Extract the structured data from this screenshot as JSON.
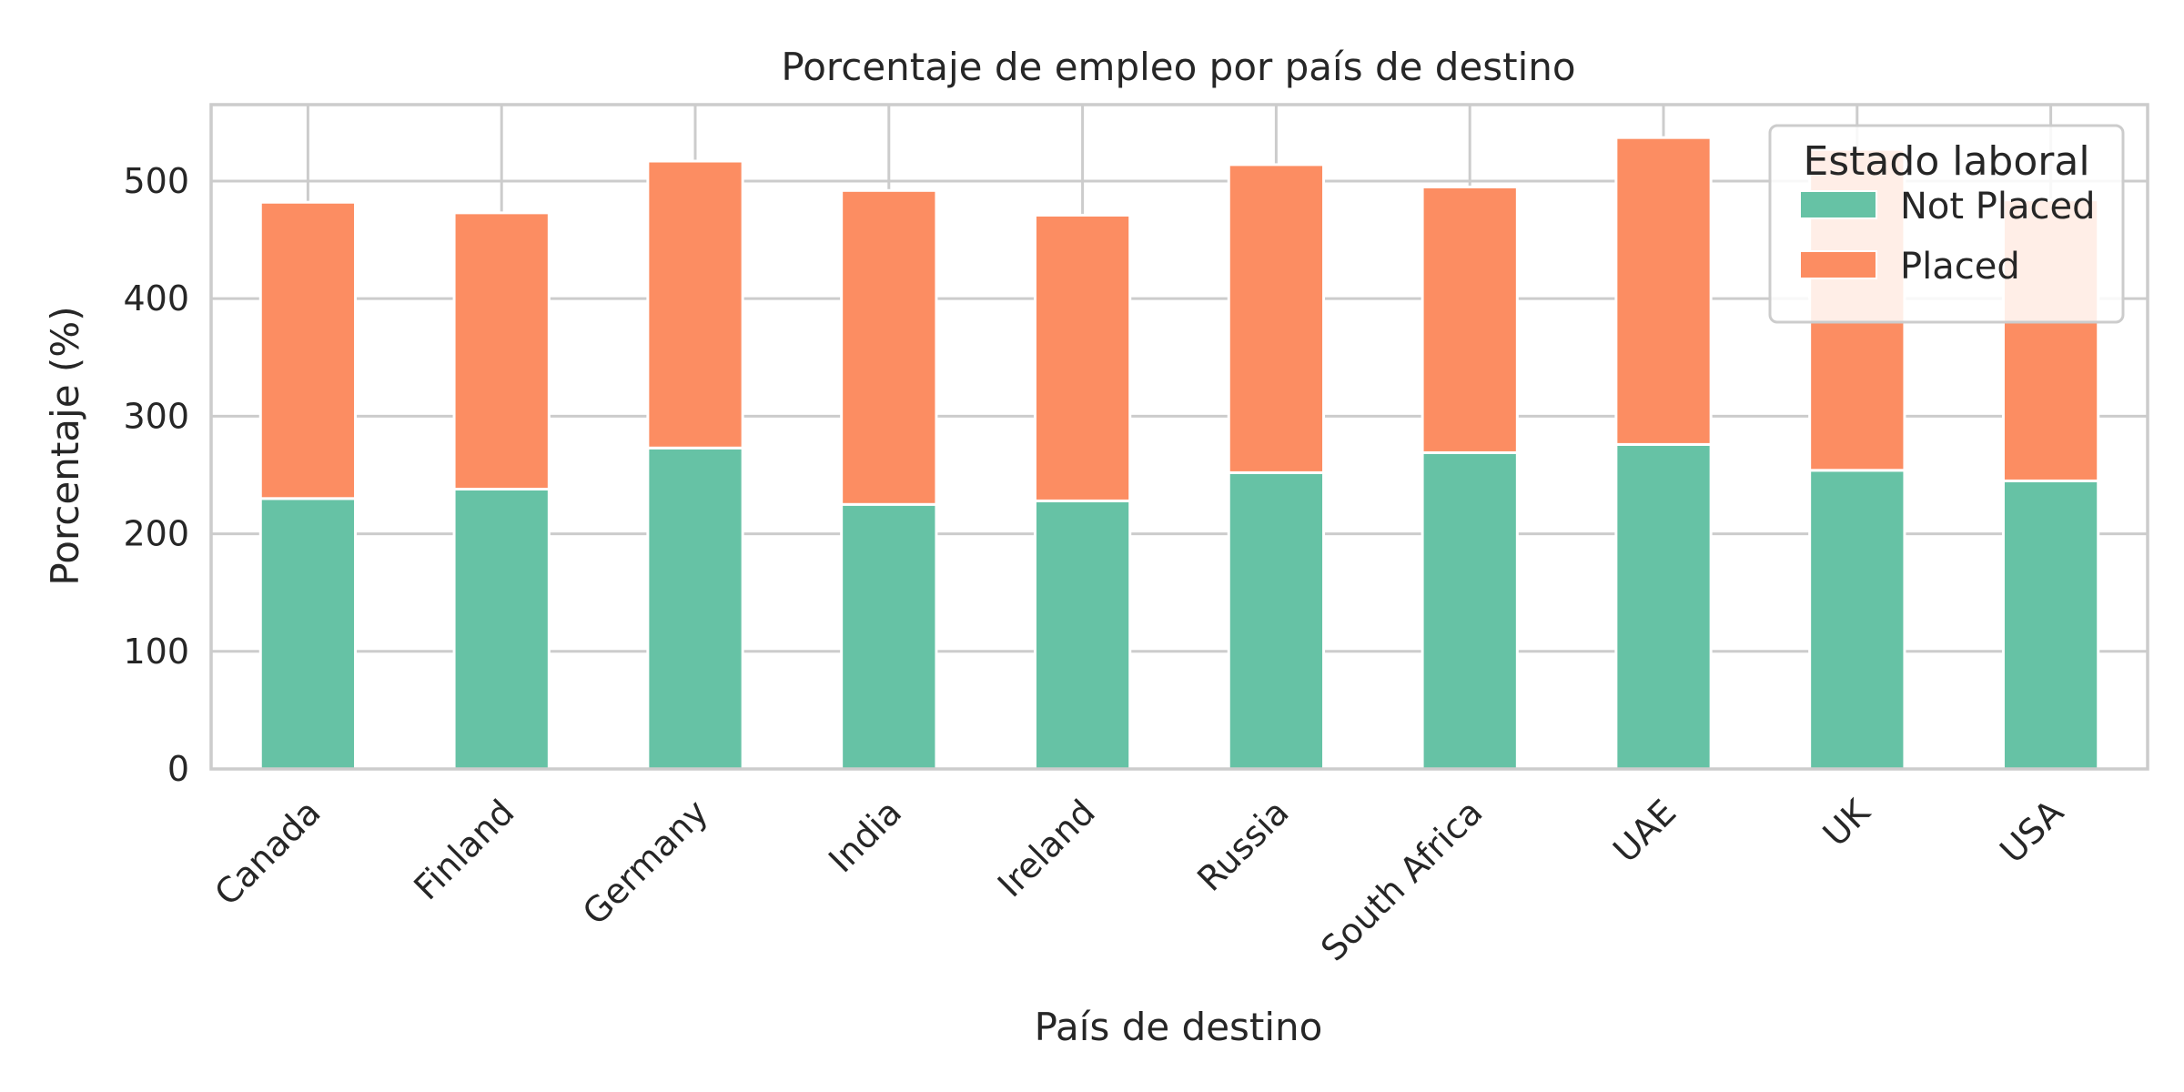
{
  "chart_data": {
    "type": "bar",
    "stacked": true,
    "title": "Porcentaje de empleo por país de destino",
    "xlabel": "País de destino",
    "ylabel": "Porcentaje (%)",
    "ylim": [
      0,
      565
    ],
    "yticks": [
      0,
      100,
      200,
      300,
      400,
      500
    ],
    "grid": true,
    "categories": [
      "Canada",
      "Finland",
      "Germany",
      "India",
      "Ireland",
      "Russia",
      "South Africa",
      "UAE",
      "UK",
      "USA"
    ],
    "series": [
      {
        "name": "Not Placed",
        "color": "#66c2a5",
        "values": [
          230,
          238,
          273,
          225,
          228,
          252,
          269,
          276,
          254,
          245
        ]
      },
      {
        "name": "Placed",
        "color": "#fc8d62",
        "values": [
          252,
          235,
          244,
          267,
          243,
          262,
          226,
          261,
          273,
          239
        ]
      }
    ],
    "legend": {
      "title": "Estado laboral",
      "placement": "top-right"
    }
  }
}
